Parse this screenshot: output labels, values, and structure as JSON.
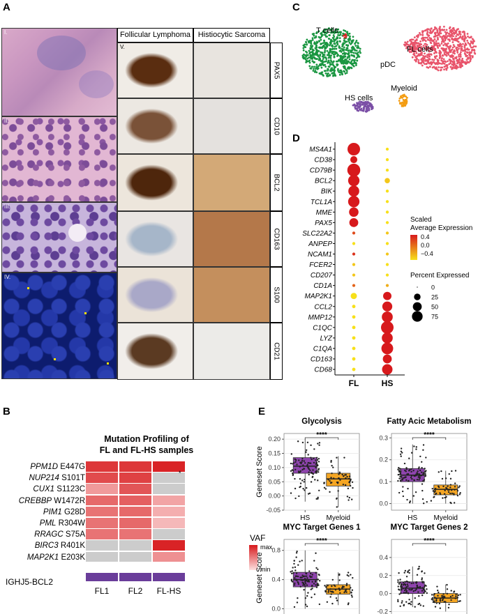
{
  "panels": {
    "A": "A",
    "B": "B",
    "C": "C",
    "D": "D",
    "E": "E"
  },
  "panelA": {
    "left_labels": [
      "I.",
      "II.",
      "III.",
      "IV."
    ],
    "col_headers": [
      "Follicular Lymphoma",
      "Histiocytic Sarcoma"
    ],
    "v_label": "V.",
    "stains": [
      "PAX5",
      "CD10",
      "BCL2",
      "CD163",
      "S100",
      "CD21"
    ]
  },
  "panelB": {
    "title_line1": "Mutation Profiling of",
    "title_line2": "FL and FL-HS samples",
    "mutations": [
      {
        "gene": "PPM1D",
        "aa": "E447G",
        "vals": [
          0.85,
          0.85,
          0.95
        ]
      },
      {
        "gene": "NUP214",
        "aa": "S101T",
        "vals": [
          0.75,
          0.8,
          null
        ]
      },
      {
        "gene": "CUX1",
        "aa": "S1123C",
        "vals": [
          0.35,
          0.7,
          null
        ]
      },
      {
        "gene": "CREBBP",
        "aa": "W1472R",
        "vals": [
          0.6,
          0.65,
          0.3
        ]
      },
      {
        "gene": "PIM1",
        "aa": "G28D",
        "vals": [
          0.55,
          0.6,
          0.25
        ]
      },
      {
        "gene": "PML",
        "aa": "R304W",
        "vals": [
          0.55,
          0.6,
          0.2
        ]
      },
      {
        "gene": "RRAGC",
        "aa": "S75A",
        "vals": [
          0.55,
          0.55,
          null
        ]
      },
      {
        "gene": "BIRC3",
        "aa": "R401K",
        "vals": [
          null,
          null,
          0.95
        ]
      },
      {
        "gene": "MAP2K1",
        "aa": "E203K",
        "vals": [
          null,
          null,
          0.4
        ]
      }
    ],
    "marker": "*",
    "legend_title": "VAF",
    "legend_max": "max",
    "legend_min": "min",
    "fusion_label": "IGHJ5-BCL2",
    "samples": [
      "FL1",
      "FL2",
      "FL-HS"
    ],
    "colors": {
      "max": "#d7191c",
      "min": "#fde0e0",
      "na": "#cccccc",
      "fusion": "#6a3d9a"
    }
  },
  "panelC": {
    "labels": [
      "T cells",
      "FL cells",
      "pDC",
      "HS cells",
      "Myeloid"
    ],
    "colors": {
      "tcells": "#1a9641",
      "fl": "#e8546b",
      "hs": "#7b4fa6",
      "myeloid": "#f39c12",
      "pdc": "#d62728"
    }
  },
  "chart_data": [
    {
      "type": "scatter",
      "panel": "D",
      "x_categories": [
        "FL",
        "HS"
      ],
      "genes": [
        "MS4A1",
        "CD38",
        "CD79B",
        "BCL2",
        "BIK",
        "TCL1A",
        "MME",
        "PAX5",
        "SLC22A2",
        "ANPEP",
        "NCAM1",
        "FCER2",
        "CD207",
        "CD1A",
        "MAP2K1",
        "CCL2",
        "MMP12",
        "C1QC",
        "LYZ",
        "C1QA",
        "CD163",
        "CD68"
      ],
      "pct_FL": [
        75,
        20,
        80,
        60,
        55,
        60,
        40,
        35,
        2,
        2,
        2,
        2,
        2,
        2,
        15,
        3,
        3,
        3,
        3,
        3,
        3,
        3
      ],
      "pct_HS": [
        2,
        2,
        2,
        10,
        2,
        2,
        2,
        2,
        2,
        2,
        2,
        2,
        2,
        2,
        30,
        45,
        55,
        75,
        55,
        65,
        35,
        50
      ],
      "expr_FL": [
        0.4,
        0.4,
        0.4,
        0.4,
        0.4,
        0.4,
        0.4,
        0.4,
        0.2,
        -0.4,
        0.3,
        -0.3,
        -0.3,
        0.1,
        -0.4,
        -0.4,
        -0.4,
        -0.4,
        -0.4,
        -0.4,
        -0.4,
        -0.4
      ],
      "expr_HS": [
        -0.4,
        -0.4,
        -0.4,
        -0.3,
        -0.4,
        -0.4,
        -0.4,
        -0.4,
        -0.3,
        -0.4,
        -0.3,
        -0.4,
        -0.4,
        -0.2,
        0.4,
        0.4,
        0.4,
        0.4,
        0.4,
        0.4,
        0.4,
        0.4
      ],
      "legend": {
        "expr_title_1": "Scaled",
        "expr_title_2": "Average Expression",
        "expr_ticks": [
          "0.4",
          "0.0",
          "−0.4"
        ],
        "pct_title": "Percent Expressed",
        "pct_ticks": [
          "0",
          "25",
          "50",
          "75"
        ]
      }
    },
    {
      "type": "box",
      "panel": "E",
      "ylabel": "Geneset Score",
      "categories": [
        "HS",
        "Myeloid"
      ],
      "significance": "****",
      "plots": [
        {
          "title": "Glycolysis",
          "ylim": [
            -0.05,
            0.22
          ],
          "yticks": [
            "0.20",
            "0.15",
            "0.10",
            "0.05",
            "0.00",
            "-0.05"
          ],
          "tickvals": [
            0.2,
            0.15,
            0.1,
            0.05,
            0.0,
            -0.05
          ],
          "HS": {
            "min": -0.02,
            "q1": 0.08,
            "med": 0.105,
            "q3": 0.135,
            "max": 0.2
          },
          "Myeloid": {
            "min": -0.04,
            "q1": 0.035,
            "med": 0.06,
            "q3": 0.08,
            "max": 0.14
          }
        },
        {
          "title": "Fatty Acic Metabolism",
          "ylim": [
            -0.03,
            0.32
          ],
          "yticks": [
            "0.3",
            "0.2",
            "0.1",
            "0.0"
          ],
          "tickvals": [
            0.3,
            0.2,
            0.1,
            0.0
          ],
          "HS": {
            "min": 0.0,
            "q1": 0.1,
            "med": 0.13,
            "q3": 0.16,
            "max": 0.27
          },
          "Myeloid": {
            "min": 0.0,
            "q1": 0.04,
            "med": 0.065,
            "q3": 0.085,
            "max": 0.15
          }
        },
        {
          "title": "MYC Target Genes 1",
          "ylim": [
            -0.1,
            0.95
          ],
          "yticks": [
            "0.8",
            "0.4",
            "0.0"
          ],
          "tickvals": [
            0.8,
            0.4,
            0.0
          ],
          "HS": {
            "min": 0.0,
            "q1": 0.3,
            "med": 0.4,
            "q3": 0.5,
            "max": 0.8
          },
          "Myeloid": {
            "min": 0.05,
            "q1": 0.2,
            "med": 0.27,
            "q3": 0.33,
            "max": 0.5
          }
        },
        {
          "title": "MYC Target Genes 2",
          "ylim": [
            -0.25,
            0.6
          ],
          "yticks": [
            "0.4",
            "0.2",
            "0.0",
            "-0.2"
          ],
          "tickvals": [
            0.4,
            0.2,
            0.0,
            -0.2
          ],
          "HS": {
            "min": -0.15,
            "q1": 0.0,
            "med": 0.06,
            "q3": 0.13,
            "max": 0.3
          },
          "Myeloid": {
            "min": -0.2,
            "q1": -0.1,
            "med": -0.05,
            "q3": 0.0,
            "max": 0.1
          }
        }
      ],
      "colors": {
        "HS": "#8e44ad",
        "Myeloid": "#f5a623"
      }
    }
  ]
}
